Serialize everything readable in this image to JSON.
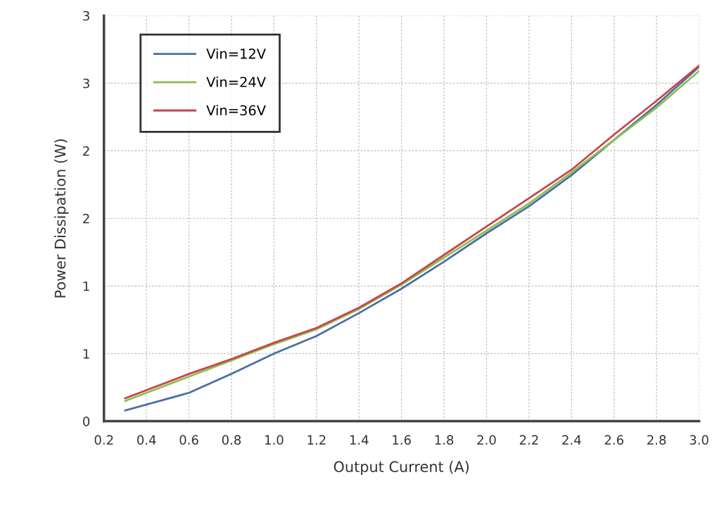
{
  "chart_data": {
    "type": "line",
    "xlabel": "Output Current (A)",
    "ylabel": "Power Dissipation (W)",
    "x": [
      0.3,
      0.6,
      0.8,
      1.0,
      1.2,
      1.4,
      1.6,
      1.8,
      2.0,
      2.2,
      2.4,
      2.6,
      2.8,
      3.0
    ],
    "series": [
      {
        "name": "Vin=12V",
        "color": "#4a6fa5",
        "values": [
          0.08,
          0.21,
          0.35,
          0.5,
          0.63,
          0.8,
          0.98,
          1.18,
          1.39,
          1.59,
          1.82,
          2.08,
          2.34,
          2.62
        ]
      },
      {
        "name": "Vin=24V",
        "color": "#8cbf50",
        "values": [
          0.15,
          0.33,
          0.45,
          0.57,
          0.68,
          0.83,
          1.01,
          1.21,
          1.41,
          1.61,
          1.84,
          2.08,
          2.32,
          2.59
        ]
      },
      {
        "name": "Vin=36V",
        "color": "#c8444a",
        "values": [
          0.17,
          0.35,
          0.46,
          0.58,
          0.69,
          0.84,
          1.02,
          1.23,
          1.44,
          1.65,
          1.86,
          2.12,
          2.37,
          2.63
        ]
      }
    ],
    "xlim": [
      0.2,
      3.0
    ],
    "xticks": [
      {
        "value": 0.2,
        "label": "0.2"
      },
      {
        "value": 0.4,
        "label": "0.4"
      },
      {
        "value": 0.6,
        "label": "0.6"
      },
      {
        "value": 0.8,
        "label": "0.8"
      },
      {
        "value": 1.0,
        "label": "1.0"
      },
      {
        "value": 1.2,
        "label": "1.2"
      },
      {
        "value": 1.4,
        "label": "1.4"
      },
      {
        "value": 1.6,
        "label": "1.6"
      },
      {
        "value": 1.8,
        "label": "1.8"
      },
      {
        "value": 2.0,
        "label": "2.0"
      },
      {
        "value": 2.2,
        "label": "2.2"
      },
      {
        "value": 2.4,
        "label": "2.4"
      },
      {
        "value": 2.6,
        "label": "2.6"
      },
      {
        "value": 2.8,
        "label": "2.8"
      },
      {
        "value": 3.0,
        "label": "3.0"
      }
    ],
    "ylim": [
      0,
      3
    ],
    "yticks": [
      0,
      {
        "value": 0.5,
        "label": "1"
      },
      1,
      {
        "value": 1.5,
        "label": "2"
      },
      2,
      {
        "value": 2.5,
        "label": "3"
      },
      3
    ],
    "grid": true,
    "legend": "top left",
    "marker": "none",
    "line_style": "solid"
  }
}
